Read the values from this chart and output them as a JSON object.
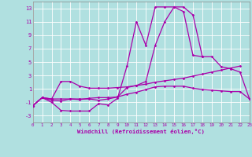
{
  "background_color": "#b0e0e0",
  "grid_color": "#ffffff",
  "line_color": "#aa00aa",
  "marker_color": "#aa00aa",
  "xlabel": "Windchill (Refroidissement éolien,°C)",
  "xlim": [
    0,
    23
  ],
  "ylim": [
    -4,
    14
  ],
  "yticks": [
    -3,
    -1,
    1,
    3,
    5,
    7,
    9,
    11,
    13
  ],
  "xticks": [
    0,
    1,
    2,
    3,
    4,
    5,
    6,
    7,
    8,
    9,
    10,
    11,
    12,
    13,
    14,
    15,
    16,
    17,
    18,
    19,
    20,
    21,
    22,
    23
  ],
  "series": [
    {
      "x": [
        0,
        1,
        2,
        3,
        4,
        5,
        6,
        7,
        8,
        9,
        10,
        11,
        12,
        13,
        14,
        15,
        16,
        17,
        18,
        19,
        20,
        21,
        22,
        23
      ],
      "y": [
        -1.5,
        -0.3,
        -1.0,
        -2.2,
        -2.3,
        -2.3,
        -2.3,
        -1.2,
        -1.4,
        -0.4,
        4.4,
        11.0,
        7.5,
        13.2,
        13.2,
        13.2,
        12.5,
        6.0,
        5.8,
        null,
        null,
        null,
        null,
        null
      ]
    },
    {
      "x": [
        0,
        1,
        2,
        3,
        4,
        5,
        6,
        7,
        8,
        9,
        10,
        11,
        12,
        13,
        14,
        15,
        16,
        17,
        18,
        19,
        20,
        21,
        22,
        23
      ],
      "y": [
        -1.5,
        -0.3,
        -0.5,
        2.1,
        2.1,
        1.4,
        1.1,
        1.1,
        1.1,
        1.2,
        1.3,
        1.5,
        1.7,
        2.0,
        2.2,
        2.4,
        2.6,
        2.9,
        3.2,
        3.5,
        3.8,
        4.1,
        4.4,
        null
      ]
    },
    {
      "x": [
        0,
        1,
        2,
        3,
        4,
        5,
        6,
        7,
        8,
        9,
        10,
        11,
        12,
        13,
        14,
        15,
        16,
        17,
        18,
        19,
        20,
        21,
        22,
        23
      ],
      "y": [
        -1.5,
        -0.3,
        -0.5,
        -0.5,
        -0.5,
        -0.6,
        -0.4,
        -0.3,
        -0.3,
        -0.2,
        0.2,
        0.5,
        0.9,
        1.3,
        1.4,
        1.4,
        1.4,
        1.1,
        0.9,
        0.8,
        0.7,
        0.6,
        0.6,
        -0.5
      ]
    },
    {
      "x": [
        0,
        1,
        2,
        3,
        4,
        5,
        6,
        7,
        8,
        9,
        10,
        11,
        12,
        13,
        14,
        15,
        16,
        17,
        18,
        19,
        20,
        21,
        22,
        23
      ],
      "y": [
        -1.5,
        -0.3,
        -0.7,
        -0.8,
        -0.5,
        -0.5,
        -0.5,
        -0.7,
        -0.5,
        -0.2,
        1.2,
        1.5,
        2.1,
        7.5,
        11.0,
        13.2,
        13.2,
        12.0,
        5.8,
        5.8,
        4.3,
        4.0,
        3.5,
        -0.5
      ]
    }
  ]
}
